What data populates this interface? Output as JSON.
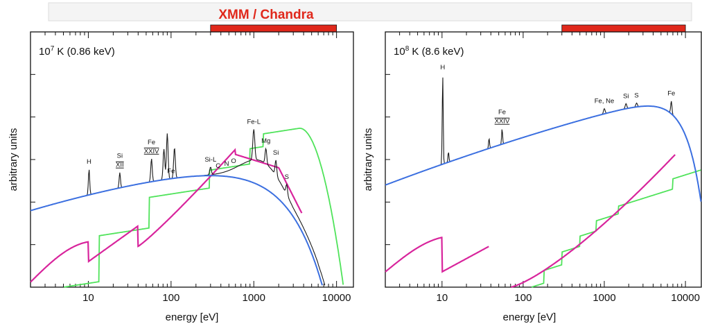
{
  "banner": {
    "title": "XMM / Chandra"
  },
  "colors": {
    "band": "#e0281b",
    "total": "#1a1a1a",
    "continuum": "#3b6fe0",
    "green": "#4fe35a",
    "magenta": "#d8249c",
    "banner_bg": "#f4f4f4"
  },
  "chart_data": [
    {
      "type": "line",
      "panel_label": {
        "base": "10",
        "exp": "7",
        "rest": " K (0.86 keV)"
      },
      "xlabel": "energy [eV]",
      "ylabel": "arbitrary units",
      "xscale": "log",
      "xlim": [
        2,
        16000
      ],
      "xticks": [
        {
          "value": 10,
          "label": "10"
        },
        {
          "value": 100,
          "label": "100"
        },
        {
          "value": 1000,
          "label": "1000"
        },
        {
          "value": 10000,
          "label": "10000"
        }
      ],
      "band_eV": [
        300,
        10000
      ],
      "line_labels": [
        {
          "text": "H",
          "x": 10.2
        },
        {
          "text": "Si",
          "x": 24
        },
        {
          "text": "XII",
          "x": 24,
          "overline": true
        },
        {
          "text": "Fe",
          "x": 58
        },
        {
          "text": "XXIV",
          "x": 58,
          "overline": true
        },
        {
          "text": "Fe",
          "x": 100
        },
        {
          "text": "Si-L",
          "x": 300
        },
        {
          "text": "C",
          "x": 370
        },
        {
          "text": "N",
          "x": 470
        },
        {
          "text": "O",
          "x": 570
        },
        {
          "text": "Fe-L",
          "x": 1000
        },
        {
          "text": "Mg",
          "x": 1400
        },
        {
          "text": "Si",
          "x": 1850
        },
        {
          "text": "S",
          "x": 2500
        }
      ]
    },
    {
      "type": "line",
      "panel_label": {
        "base": "10",
        "exp": "8",
        "rest": " K (8.6 keV)"
      },
      "xlabel": "energy [eV]",
      "ylabel": "arbitrary units",
      "xscale": "log",
      "xlim": [
        2,
        16000
      ],
      "xticks": [
        {
          "value": 10,
          "label": "10"
        },
        {
          "value": 100,
          "label": "100"
        },
        {
          "value": 1000,
          "label": "1000"
        },
        {
          "value": 10000,
          "label": "10000"
        }
      ],
      "band_eV": [
        300,
        10000
      ],
      "line_labels": [
        {
          "text": "H",
          "x": 10.2
        },
        {
          "text": "Fe",
          "x": 55
        },
        {
          "text": "XXIV",
          "x": 55,
          "overline": true
        },
        {
          "text": "Fe, Ne",
          "x": 1000
        },
        {
          "text": "Si",
          "x": 1850
        },
        {
          "text": "S",
          "x": 2500
        },
        {
          "text": "Fe",
          "x": 6700
        }
      ]
    }
  ]
}
